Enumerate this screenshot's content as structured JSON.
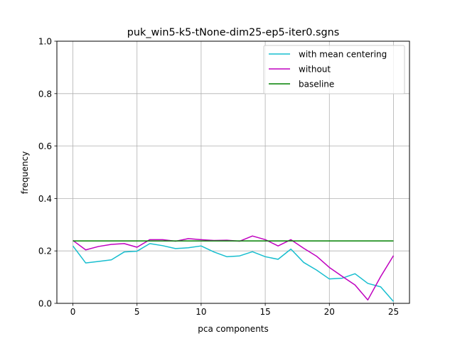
{
  "chart_data": {
    "type": "line",
    "title": "puk_win5-k5-tNone-dim25-ep5-iter0.sgns",
    "xlabel": "pca components",
    "ylabel": "frequency",
    "xlim": [
      -1.25,
      26.25
    ],
    "ylim": [
      0.0,
      1.0
    ],
    "xticks": [
      0,
      5,
      10,
      15,
      20,
      25
    ],
    "yticks": [
      0.0,
      0.2,
      0.4,
      0.6,
      0.8,
      1.0
    ],
    "xtick_labels": [
      "0",
      "5",
      "10",
      "15",
      "20",
      "25"
    ],
    "ytick_labels": [
      "0.0",
      "0.2",
      "0.4",
      "0.6",
      "0.8",
      "1.0"
    ],
    "grid": true,
    "legend_position": "top-right",
    "x": [
      0,
      1,
      2,
      3,
      4,
      5,
      6,
      7,
      8,
      9,
      10,
      11,
      12,
      13,
      14,
      15,
      16,
      17,
      18,
      19,
      20,
      21,
      22,
      23,
      24,
      25
    ],
    "series": [
      {
        "name": "with mean centering",
        "color": "#17becf",
        "values": [
          0.219,
          0.154,
          0.16,
          0.166,
          0.196,
          0.199,
          0.228,
          0.22,
          0.209,
          0.212,
          0.219,
          0.196,
          0.178,
          0.181,
          0.197,
          0.178,
          0.168,
          0.207,
          0.156,
          0.127,
          0.093,
          0.096,
          0.113,
          0.076,
          0.063,
          0.007
        ]
      },
      {
        "name": "without",
        "color": "#bf00bf",
        "values": [
          0.24,
          0.204,
          0.217,
          0.225,
          0.228,
          0.214,
          0.243,
          0.243,
          0.237,
          0.247,
          0.243,
          0.24,
          0.241,
          0.237,
          0.257,
          0.243,
          0.219,
          0.243,
          0.21,
          0.18,
          0.137,
          0.103,
          0.07,
          0.013,
          0.102,
          0.182
        ]
      },
      {
        "name": "baseline",
        "color": "#008000",
        "values": [
          0.238,
          0.238,
          0.238,
          0.238,
          0.238,
          0.238,
          0.238,
          0.238,
          0.238,
          0.238,
          0.238,
          0.238,
          0.238,
          0.238,
          0.238,
          0.238,
          0.238,
          0.238,
          0.238,
          0.238,
          0.238,
          0.238,
          0.238,
          0.238,
          0.238,
          0.238
        ]
      }
    ]
  }
}
